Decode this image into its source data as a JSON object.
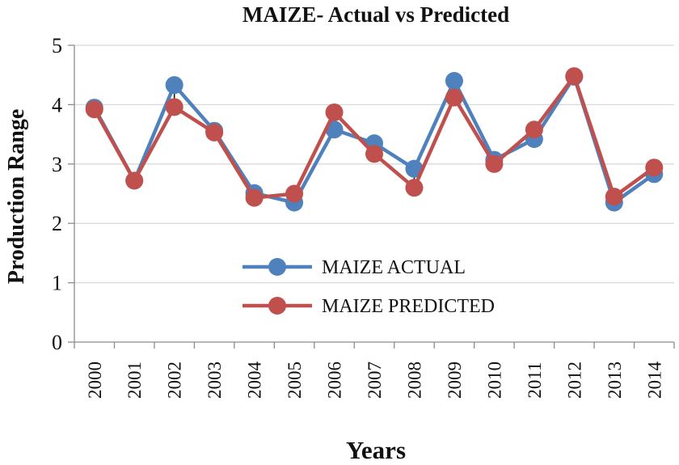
{
  "chart_data": {
    "type": "line",
    "title": "MAIZE- Actual vs Predicted",
    "xlabel": "Years",
    "ylabel": "Production Range",
    "categories": [
      "2000",
      "2001",
      "2002",
      "2003",
      "2004",
      "2005",
      "2006",
      "2007",
      "2008",
      "2009",
      "2010",
      "2011",
      "2012",
      "2013",
      "2014"
    ],
    "ylim": [
      0,
      5
    ],
    "yticks": [
      "0",
      "1",
      "2",
      "3",
      "4",
      "5"
    ],
    "grid": true,
    "legend_position": "center",
    "series": [
      {
        "name": "MAIZE ACTUAL",
        "color": "#4f81bd",
        "values": [
          3.95,
          2.72,
          4.33,
          3.56,
          2.51,
          2.35,
          3.58,
          3.35,
          2.92,
          4.4,
          3.07,
          3.42,
          4.47,
          2.35,
          2.83
        ]
      },
      {
        "name": "MAIZE PREDICTED",
        "color": "#c0504d",
        "values": [
          3.92,
          2.72,
          3.96,
          3.53,
          2.43,
          2.5,
          3.87,
          3.17,
          2.6,
          4.12,
          3.0,
          3.58,
          4.48,
          2.45,
          2.94
        ]
      }
    ]
  }
}
